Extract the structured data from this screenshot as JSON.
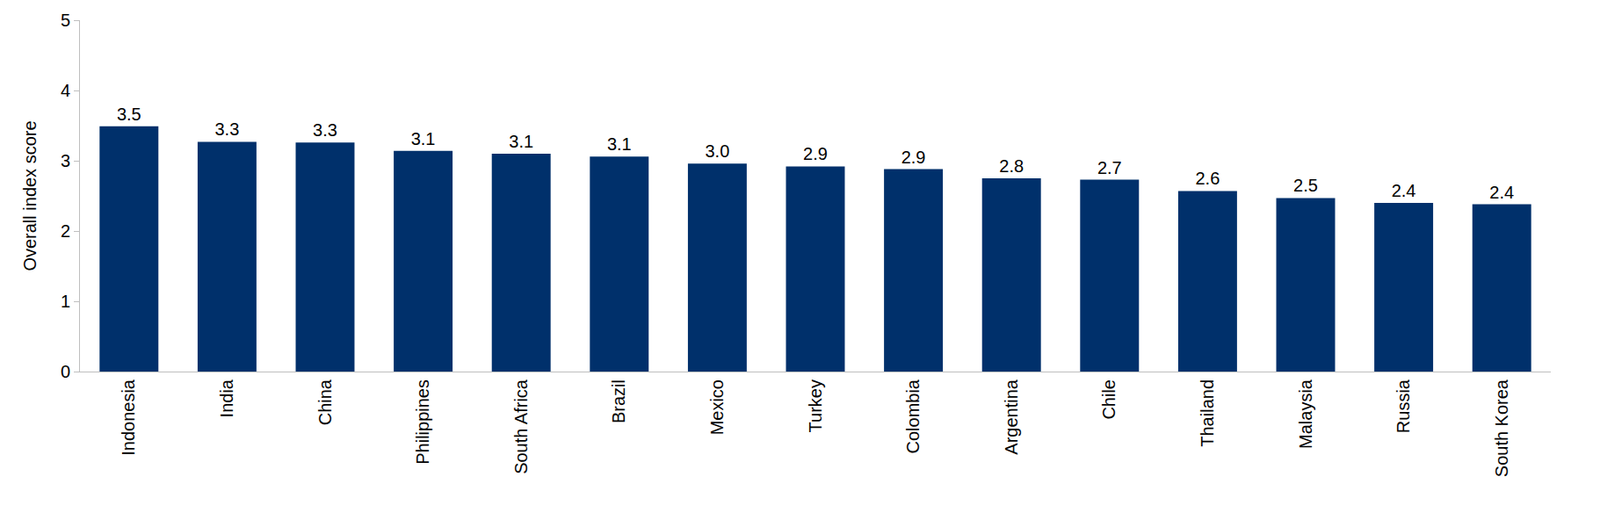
{
  "chart_data": {
    "type": "bar",
    "categories": [
      "Indonesia",
      "India",
      "China",
      "Philippines",
      "South Africa",
      "Brazil",
      "Mexico",
      "Turkey",
      "Colombia",
      "Argentina",
      "Chile",
      "Thailand",
      "Malaysia",
      "Russia",
      "South Korea"
    ],
    "values": [
      3.49,
      3.27,
      3.26,
      3.14,
      3.1,
      3.06,
      2.96,
      2.92,
      2.88,
      2.75,
      2.73,
      2.57,
      2.47,
      2.4,
      2.38
    ],
    "value_labels": [
      "3.5",
      "3.3",
      "3.3",
      "3.1",
      "3.1",
      "3.1",
      "3.0",
      "2.9",
      "2.9",
      "2.8",
      "2.7",
      "2.6",
      "2.5",
      "2.4",
      "2.4"
    ],
    "data_labels": true,
    "color": "#00306b",
    "y_label": "Overall index score",
    "ylim": [
      0,
      5
    ],
    "yticks": [
      0,
      1,
      2,
      3,
      4,
      5
    ],
    "grid": false
  }
}
